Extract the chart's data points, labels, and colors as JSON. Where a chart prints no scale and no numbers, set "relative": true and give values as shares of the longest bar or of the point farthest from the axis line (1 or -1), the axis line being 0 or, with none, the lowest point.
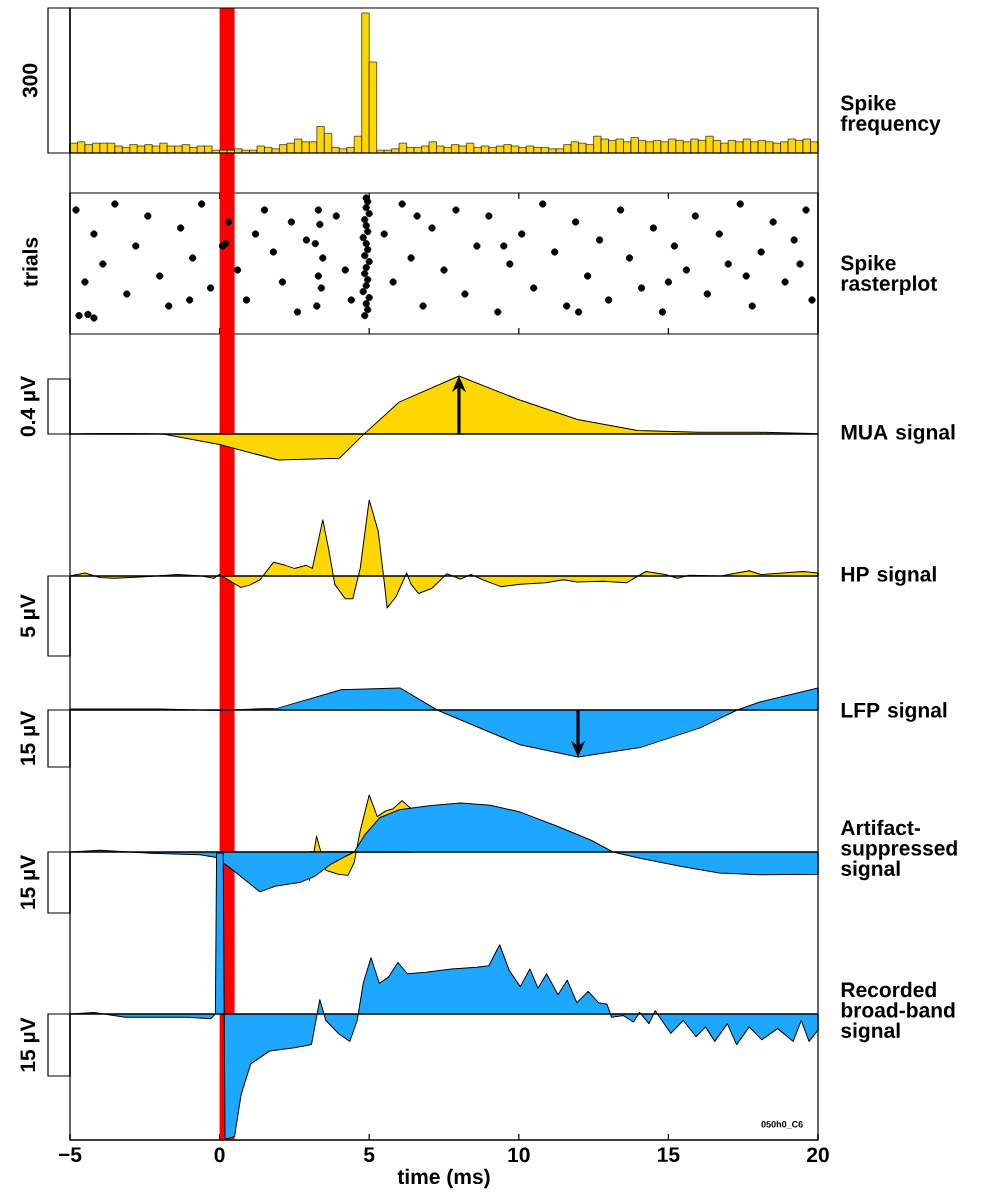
{
  "chart_data": [
    {
      "type": "bar",
      "y2label": "Spike frequency",
      "ylabel": "300",
      "relative": true,
      "color": "#ffd700",
      "tick_labels": false,
      "categories": [
        null,
        null,
        null,
        null,
        null,
        null,
        null,
        null,
        null,
        null,
        null,
        null,
        null,
        null,
        null,
        null,
        null,
        null,
        null,
        null,
        null,
        null,
        null,
        null,
        null,
        null,
        null,
        null,
        null,
        null,
        null,
        null,
        null,
        null,
        null,
        null,
        null,
        null,
        null,
        null,
        null,
        null,
        null,
        null,
        null,
        null,
        null,
        null,
        null,
        null,
        null,
        null,
        null,
        null,
        null,
        null,
        null,
        null,
        null,
        null,
        null,
        null,
        null,
        null,
        null,
        null,
        null,
        null,
        null,
        null,
        null,
        null,
        null,
        null,
        null,
        null,
        null,
        null,
        null,
        null,
        null,
        null,
        null,
        null,
        null,
        null,
        null,
        null,
        null,
        null,
        null,
        null,
        null,
        null,
        null,
        null,
        null,
        null,
        null,
        null
      ],
      "values": [
        0.07,
        0.08,
        0.06,
        0.07,
        0.07,
        0.07,
        0.05,
        0.04,
        0.06,
        0.05,
        0.06,
        0.05,
        0.07,
        0.05,
        0.05,
        0.06,
        0.04,
        0.05,
        0.05,
        0.02,
        0.02,
        0.02,
        0.03,
        0.02,
        0.02,
        0.05,
        0.04,
        0.03,
        0.06,
        0.07,
        0.1,
        0.08,
        0.08,
        0.19,
        0.14,
        0.04,
        0.03,
        0.04,
        0.12,
        1.0,
        0.65,
        0.02,
        0.02,
        0.03,
        0.07,
        0.04,
        0.04,
        0.05,
        0.08,
        0.05,
        0.04,
        0.06,
        0.05,
        0.07,
        0.04,
        0.05,
        0.04,
        0.05,
        0.06,
        0.05,
        0.04,
        0.05,
        0.04,
        0.04,
        0.03,
        0.03,
        0.06,
        0.08,
        0.07,
        0.06,
        0.12,
        0.1,
        0.09,
        0.1,
        0.08,
        0.11,
        0.09,
        0.08,
        0.09,
        0.08,
        0.1,
        0.09,
        0.08,
        0.1,
        0.09,
        0.12,
        0.09,
        0.07,
        0.09,
        0.08,
        0.1,
        0.08,
        0.09,
        0.08,
        0.07,
        0.08,
        0.1,
        0.09,
        0.1,
        0.08
      ]
    },
    {
      "type": "scatter",
      "y2label": "Spike rasterplot",
      "ylabel": "trials",
      "relative": true,
      "color": "#000000",
      "xlim": [
        -5,
        20
      ],
      "xticks": [
        0,
        5,
        10,
        15
      ],
      "tick_labels": false,
      "x": [
        4.85,
        4.95,
        4.9,
        5.0,
        4.8,
        4.9,
        4.95,
        4.85,
        4.9,
        5.0,
        4.85,
        4.95,
        4.9,
        4.8,
        4.95,
        4.9,
        4.85,
        5.0,
        4.9,
        4.95,
        4.9,
        3.25,
        3.4,
        3.3,
        3.45,
        3.2,
        3.35,
        3.3,
        -4.7,
        -4.4,
        -4.2,
        -4.8,
        -4.2,
        -3.9,
        -3.5,
        -3.1,
        -2.8,
        -2.4,
        -2.0,
        -1.7,
        -1.3,
        -0.9,
        -0.6,
        -0.3,
        0.1,
        0.2,
        0.3,
        0.6,
        0.9,
        1.5,
        1.8,
        2.1,
        2.4,
        2.6,
        2.9,
        3.9,
        4.2,
        4.4,
        5.5,
        5.8,
        6.1,
        6.4,
        6.8,
        7.1,
        7.5,
        7.9,
        8.2,
        8.6,
        9.0,
        9.3,
        9.7,
        10.1,
        10.5,
        10.8,
        11.2,
        11.6,
        11.9,
        12.3,
        12.7,
        13.0,
        13.4,
        13.7,
        14.1,
        14.5,
        14.8,
        15.2,
        15.6,
        15.9,
        16.3,
        16.7,
        17.0,
        17.4,
        17.8,
        18.1,
        18.5,
        18.9,
        19.2,
        19.6,
        19.8,
        -4.5,
        -1.0,
        1.2,
        6.6,
        9.5,
        12.0,
        15.0,
        17.6,
        19.4
      ],
      "values": [
        0.02,
        0.07,
        0.12,
        0.17,
        0.22,
        0.27,
        0.32,
        0.37,
        0.42,
        0.47,
        0.52,
        0.57,
        0.62,
        0.67,
        0.72,
        0.77,
        0.82,
        0.87,
        0.92,
        0.97,
        1.0,
        0.1,
        0.25,
        0.35,
        0.5,
        0.62,
        0.78,
        0.9,
        0.02,
        0.03,
        0,
        0.9,
        0.7,
        0.45,
        0.95,
        0.2,
        0.6,
        0.85,
        0.35,
        0.1,
        0.75,
        0.5,
        0.95,
        0.25,
        0.6,
        0.62,
        0.8,
        0.4,
        0.15,
        0.9,
        0.55,
        0.3,
        0.8,
        0.05,
        0.65,
        0.85,
        0.4,
        0.15,
        0.7,
        0.3,
        0.95,
        0.5,
        0.1,
        0.75,
        0.4,
        0.9,
        0.2,
        0.6,
        0.85,
        0.05,
        0.45,
        0.7,
        0.25,
        0.95,
        0.55,
        0.1,
        0.8,
        0.35,
        0.65,
        0.15,
        0.9,
        0.5,
        0.25,
        0.75,
        0.05,
        0.6,
        0.4,
        0.85,
        0.2,
        0.7,
        0.45,
        0.95,
        0.1,
        0.55,
        0.8,
        0.3,
        0.65,
        0.9,
        0.15,
        0.3,
        0.15,
        0.7,
        0.85,
        0.6,
        0.05,
        0.3,
        0.35,
        0.45
      ],
      "bands": [
        {
          "axis": "x",
          "from": 0,
          "to": 0.5,
          "color": "#ff0000"
        }
      ]
    },
    {
      "type": "area",
      "y2label": "MUA signal",
      "ylabel": "0.4 µV",
      "relative": true,
      "xlim": [
        -5,
        20
      ],
      "tick_labels": false,
      "series": [
        {
          "color": "#ffd700",
          "x": [
            -5,
            -4,
            -3,
            -1.9,
            0,
            1.96,
            4.0,
            4.83,
            6.0,
            8.0,
            9.96,
            11.96,
            13.97,
            16,
            18,
            19.8,
            20
          ],
          "values": [
            0,
            0.01,
            0.01,
            0,
            -0.18,
            -0.45,
            -0.42,
            0,
            0.55,
            1.0,
            0.6,
            0.25,
            0.06,
            0.03,
            0.03,
            0.01,
            0
          ]
        }
      ],
      "bands": [
        {
          "axis": "x",
          "from": 0,
          "to": 0.5,
          "color": "#ff0000"
        }
      ]
    },
    {
      "type": "area",
      "y2label": "HP signal",
      "ylabel": "5 µV",
      "relative": true,
      "xlim": [
        -5,
        20
      ],
      "tick_labels": false,
      "series": [
        {
          "color": "#ffd700",
          "x": [
            -5,
            -4.5,
            -4,
            -3.5,
            -2.5,
            -1.4,
            -0.6,
            -0.2,
            0,
            0.7,
            1.0,
            1.35,
            1.8,
            2.2,
            2.5,
            2.9,
            3.1,
            3.45,
            3.65,
            3.85,
            4.2,
            4.45,
            4.7,
            5.0,
            5.3,
            5.5,
            5.6,
            5.9,
            6.25,
            6.4,
            6.65,
            7.1,
            7.6,
            8.05,
            8.4,
            8.8,
            9.4,
            10.05,
            10.9,
            11.5,
            11.95,
            12.8,
            13.6,
            13.9,
            14.25,
            14.9,
            15.3,
            15.7,
            16.75,
            17.7,
            18.1,
            19.5,
            20
          ],
          "values": [
            0,
            0.04,
            -0.02,
            -0.03,
            -0.01,
            0.02,
            0,
            -0.03,
            0.02,
            -0.15,
            -0.12,
            -0.05,
            0.18,
            0.14,
            0.1,
            0.14,
            0.1,
            0.74,
            0.34,
            -0.11,
            -0.3,
            -0.3,
            0.1,
            1.0,
            0.59,
            -0.07,
            -0.42,
            -0.27,
            0.04,
            -0.11,
            -0.23,
            -0.16,
            0.03,
            -0.04,
            0.02,
            -0.05,
            -0.14,
            -0.11,
            -0.09,
            -0.05,
            -0.08,
            -0.07,
            -0.09,
            -0.02,
            0.06,
            0.02,
            -0.03,
            0.01,
            0,
            0.07,
            0.02,
            0.06,
            0.04
          ]
        }
      ],
      "bands": [
        {
          "axis": "x",
          "from": 0,
          "to": 0.5,
          "color": "#ff0000"
        }
      ]
    },
    {
      "type": "area",
      "y2label": "LFP signal",
      "ylabel": "15 µV",
      "relative": true,
      "xlim": [
        -5,
        20
      ],
      "tick_labels": false,
      "series": [
        {
          "color": "#1ea7ff",
          "x": [
            -5,
            -2,
            0,
            1.95,
            4.06,
            6.03,
            7.27,
            10.04,
            11.98,
            14.05,
            16.06,
            17.3,
            18.06,
            20
          ],
          "values": [
            0.02,
            0.02,
            -0.01,
            0.04,
            0.43,
            0.47,
            0,
            -0.74,
            -1.0,
            -0.8,
            -0.38,
            0,
            0.17,
            0.47
          ]
        }
      ],
      "bands": [
        {
          "axis": "x",
          "from": 0,
          "to": 0.5,
          "color": "#ff0000"
        }
      ]
    },
    {
      "type": "area",
      "y2label": "Artifact-suppressed signal",
      "ylabel": "15 µV",
      "relative": true,
      "xlim": [
        -5,
        20
      ],
      "tick_labels": false,
      "series": [
        {
          "color": "#ffd700",
          "x": [
            3.0,
            3.24,
            3.55,
            3.97,
            4.29,
            4.5,
            4.7,
            5.0,
            5.27,
            5.55,
            5.8,
            6.1,
            6.4
          ],
          "values": [
            -0.5,
            0.28,
            -0.32,
            -0.39,
            -0.41,
            -0.18,
            0.37,
            1.0,
            0.62,
            0.72,
            0.76,
            0.9,
            0.76
          ]
        },
        {
          "color": "#1ea7ff",
          "x": [
            -5,
            -4,
            -2.3,
            -0.65,
            -0.15,
            0.35,
            0.85,
            1.35,
            1.85,
            2.7,
            3.2,
            3.7,
            4.2,
            4.5,
            4.85,
            5.35,
            6.0,
            7.0,
            8.05,
            9.05,
            10.05,
            11.2,
            12.4,
            13.15,
            14.05,
            15.4,
            16.7,
            18.05,
            20
          ],
          "values": [
            0,
            0.03,
            -0.02,
            -0.05,
            -0.09,
            -0.28,
            -0.49,
            -0.7,
            -0.6,
            -0.53,
            -0.42,
            -0.22,
            -0.08,
            0,
            0.3,
            0.6,
            0.74,
            0.81,
            0.86,
            0.82,
            0.7,
            0.47,
            0.21,
            0,
            -0.11,
            -0.25,
            -0.37,
            -0.4,
            -0.39
          ]
        }
      ],
      "bands": [
        {
          "axis": "x",
          "from": 0,
          "to": 0.5,
          "color": "#ff0000"
        }
      ]
    },
    {
      "type": "area",
      "y2label": "Recorded broad-band signal",
      "ylabel": "15 µV",
      "xlabel": "time (ms)",
      "relative": true,
      "xlim": [
        -5,
        20
      ],
      "tick_labels": "x",
      "xticks": [
        {
          "value": -5,
          "label": "−5"
        },
        0,
        5,
        10,
        15,
        20
      ],
      "annotations": [
        "050h0_C6"
      ],
      "series": [
        {
          "color": "#1ea7ff",
          "x": [
            -5,
            -4.2,
            -3.15,
            -2.1,
            -1.05,
            -0.3,
            -0.14,
            -0.1,
            0.12,
            0.18,
            0.5,
            0.72,
            1.04,
            1.67,
            2.5,
            3.07,
            3.35,
            3.55,
            3.97,
            4.35,
            4.6,
            4.8,
            5.06,
            5.34,
            5.65,
            5.96,
            6.28,
            6.9,
            7.75,
            8.6,
            9.0,
            9.36,
            9.68,
            10.05,
            10.37,
            10.64,
            10.93,
            11.31,
            11.62,
            11.94,
            12.32,
            12.67,
            12.95,
            13.1,
            13.5,
            13.83,
            14.04,
            14.35,
            14.56,
            15.08,
            15.5,
            15.92,
            16.24,
            16.55,
            16.97,
            17.28,
            17.7,
            18.12,
            18.65,
            19.17,
            19.44,
            19.7,
            20
          ],
          "values": [
            0,
            0.01,
            -0.02,
            -0.02,
            -0.02,
            -0.03,
            0,
            1.0,
            1.0,
            -0.78,
            -0.76,
            -0.5,
            -0.31,
            -0.23,
            -0.21,
            -0.19,
            0.09,
            -0.04,
            -0.12,
            -0.17,
            -0.04,
            0.19,
            0.35,
            0.19,
            0.23,
            0.32,
            0.25,
            0.26,
            0.28,
            0.29,
            0.3,
            0.43,
            0.27,
            0.17,
            0.28,
            0.16,
            0.25,
            0.12,
            0.21,
            0.07,
            0.14,
            0.07,
            0.06,
            -0.02,
            -0.01,
            -0.05,
            0.01,
            -0.06,
            0.02,
            -0.12,
            -0.04,
            -0.14,
            -0.08,
            -0.17,
            -0.06,
            -0.19,
            -0.08,
            -0.16,
            -0.09,
            -0.17,
            -0.04,
            -0.17,
            -0.1
          ]
        }
      ],
      "bands": [
        {
          "axis": "x",
          "from": 0,
          "to": 0.5,
          "color": "#ff0000"
        }
      ]
    }
  ]
}
